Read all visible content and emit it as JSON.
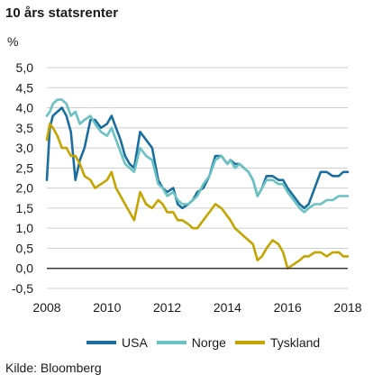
{
  "chart_data": {
    "type": "line",
    "title": "10 års statsrenter",
    "ylabel": "%",
    "source": "Kilde: Bloomberg",
    "ylim": [
      -0.5,
      5.0
    ],
    "xlim": [
      2008,
      2018
    ],
    "yticks": [
      "5,0",
      "4,5",
      "4,0",
      "3,5",
      "3,0",
      "2,5",
      "2,0",
      "1,5",
      "1,0",
      "0,5",
      "0,0",
      "-0,5"
    ],
    "ytick_values": [
      5.0,
      4.5,
      4.0,
      3.5,
      3.0,
      2.5,
      2.0,
      1.5,
      1.0,
      0.5,
      0.0,
      -0.5
    ],
    "xticks": [
      "2008",
      "2010",
      "2012",
      "2014",
      "2016",
      "2018"
    ],
    "xtick_values": [
      2008,
      2010,
      2012,
      2014,
      2016,
      2018
    ],
    "grid": "horizontal",
    "legend_position": "bottom",
    "colors": {
      "USA": "#1a6e9f",
      "Norge": "#6ac2c2",
      "Tyskland": "#c4a500"
    },
    "series": [
      {
        "name": "USA",
        "color": "#1a6e9f",
        "x": [
          2008.0,
          2008.1,
          2008.2,
          2008.35,
          2008.5,
          2008.65,
          2008.8,
          2008.95,
          2009.1,
          2009.25,
          2009.45,
          2009.6,
          2009.8,
          2010.0,
          2010.15,
          2010.3,
          2010.45,
          2010.6,
          2010.75,
          2010.9,
          2011.1,
          2011.3,
          2011.5,
          2011.7,
          2011.85,
          2012.0,
          2012.2,
          2012.35,
          2012.5,
          2012.7,
          2012.85,
          2013.0,
          2013.2,
          2013.4,
          2013.6,
          2013.8,
          2014.0,
          2014.1,
          2014.25,
          2014.4,
          2014.55,
          2014.7,
          2014.85,
          2015.0,
          2015.15,
          2015.3,
          2015.5,
          2015.7,
          2015.85,
          2016.0,
          2016.2,
          2016.4,
          2016.55,
          2016.7,
          2016.9,
          2017.1,
          2017.3,
          2017.5,
          2017.7,
          2017.85,
          2018.0
        ],
        "values": [
          2.2,
          3.5,
          3.8,
          3.9,
          4.0,
          3.8,
          3.4,
          2.2,
          2.7,
          3.0,
          3.7,
          3.7,
          3.5,
          3.6,
          3.8,
          3.5,
          3.2,
          2.8,
          2.6,
          2.5,
          3.4,
          3.2,
          3.0,
          2.2,
          2.0,
          1.9,
          2.0,
          1.6,
          1.5,
          1.6,
          1.7,
          1.9,
          2.0,
          2.3,
          2.8,
          2.8,
          2.6,
          2.7,
          2.6,
          2.6,
          2.5,
          2.4,
          2.2,
          1.8,
          2.0,
          2.3,
          2.3,
          2.2,
          2.2,
          2.0,
          1.8,
          1.6,
          1.5,
          1.6,
          2.0,
          2.4,
          2.4,
          2.3,
          2.3,
          2.4,
          2.4
        ]
      },
      {
        "name": "Norge",
        "color": "#6ac2c2",
        "x": [
          2008.0,
          2008.1,
          2008.2,
          2008.35,
          2008.5,
          2008.65,
          2008.8,
          2008.95,
          2009.1,
          2009.25,
          2009.45,
          2009.6,
          2009.8,
          2010.0,
          2010.15,
          2010.3,
          2010.45,
          2010.6,
          2010.75,
          2010.9,
          2011.1,
          2011.3,
          2011.5,
          2011.7,
          2011.85,
          2012.0,
          2012.2,
          2012.35,
          2012.5,
          2012.7,
          2012.85,
          2013.0,
          2013.2,
          2013.4,
          2013.6,
          2013.8,
          2014.0,
          2014.1,
          2014.25,
          2014.4,
          2014.55,
          2014.7,
          2014.85,
          2015.0,
          2015.15,
          2015.3,
          2015.5,
          2015.7,
          2015.85,
          2016.0,
          2016.2,
          2016.4,
          2016.55,
          2016.7,
          2016.9,
          2017.1,
          2017.3,
          2017.5,
          2017.7,
          2017.85,
          2018.0
        ],
        "values": [
          3.8,
          3.9,
          4.1,
          4.2,
          4.2,
          4.1,
          3.8,
          3.9,
          3.6,
          3.7,
          3.8,
          3.6,
          3.4,
          3.3,
          3.5,
          3.2,
          2.9,
          2.6,
          2.5,
          2.4,
          3.0,
          2.8,
          2.7,
          2.1,
          2.0,
          1.8,
          1.9,
          1.7,
          1.6,
          1.6,
          1.7,
          1.8,
          2.1,
          2.3,
          2.7,
          2.8,
          2.6,
          2.7,
          2.5,
          2.6,
          2.5,
          2.4,
          2.2,
          1.8,
          2.0,
          2.2,
          2.2,
          2.1,
          2.1,
          1.9,
          1.7,
          1.5,
          1.4,
          1.5,
          1.6,
          1.6,
          1.7,
          1.7,
          1.8,
          1.8,
          1.8
        ]
      },
      {
        "name": "Tyskland",
        "color": "#c4a500",
        "x": [
          2008.0,
          2008.1,
          2008.2,
          2008.35,
          2008.5,
          2008.65,
          2008.8,
          2008.95,
          2009.1,
          2009.25,
          2009.45,
          2009.6,
          2009.8,
          2010.0,
          2010.15,
          2010.3,
          2010.45,
          2010.6,
          2010.75,
          2010.9,
          2011.1,
          2011.3,
          2011.5,
          2011.7,
          2011.85,
          2012.0,
          2012.2,
          2012.35,
          2012.5,
          2012.7,
          2012.85,
          2013.0,
          2013.2,
          2013.4,
          2013.6,
          2013.8,
          2014.0,
          2014.1,
          2014.25,
          2014.4,
          2014.55,
          2014.7,
          2014.85,
          2015.0,
          2015.15,
          2015.3,
          2015.5,
          2015.7,
          2015.85,
          2016.0,
          2016.2,
          2016.4,
          2016.55,
          2016.7,
          2016.9,
          2017.1,
          2017.3,
          2017.5,
          2017.7,
          2017.85,
          2018.0
        ],
        "values": [
          3.2,
          3.6,
          3.5,
          3.3,
          3.0,
          3.0,
          2.8,
          2.8,
          2.6,
          2.3,
          2.2,
          2.0,
          2.1,
          2.2,
          2.4,
          2.0,
          1.8,
          1.6,
          1.4,
          1.2,
          1.9,
          1.6,
          1.5,
          1.7,
          1.6,
          1.4,
          1.4,
          1.2,
          1.2,
          1.1,
          1.0,
          1.0,
          1.2,
          1.4,
          1.6,
          1.5,
          1.3,
          1.2,
          1.0,
          0.9,
          0.8,
          0.7,
          0.6,
          0.2,
          0.3,
          0.5,
          0.7,
          0.6,
          0.4,
          0.0,
          0.1,
          0.2,
          0.3,
          0.3,
          0.4,
          0.4,
          0.3,
          0.4,
          0.4,
          0.3,
          0.3
        ]
      }
    ]
  }
}
